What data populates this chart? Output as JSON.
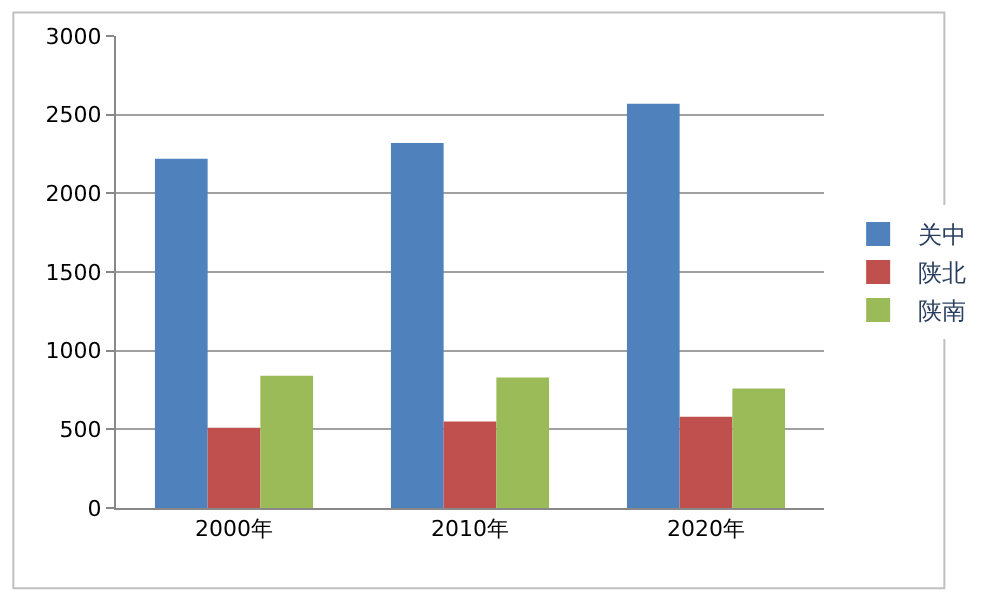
{
  "chart_data": {
    "type": "bar",
    "categories": [
      "2000年",
      "2010年",
      "2020年"
    ],
    "series": [
      {
        "name": "关中",
        "color": "#4f81bd",
        "values": [
          2220,
          2320,
          2570
        ]
      },
      {
        "name": "陕北",
        "color": "#c0504d",
        "values": [
          510,
          550,
          580
        ]
      },
      {
        "name": "陕南",
        "color": "#9bbb59",
        "values": [
          840,
          830,
          760
        ]
      }
    ],
    "ylim": [
      0,
      3000
    ],
    "yticks": [
      0,
      500,
      1000,
      1500,
      2000,
      2500,
      3000
    ],
    "grid": "y",
    "legend": "right"
  }
}
